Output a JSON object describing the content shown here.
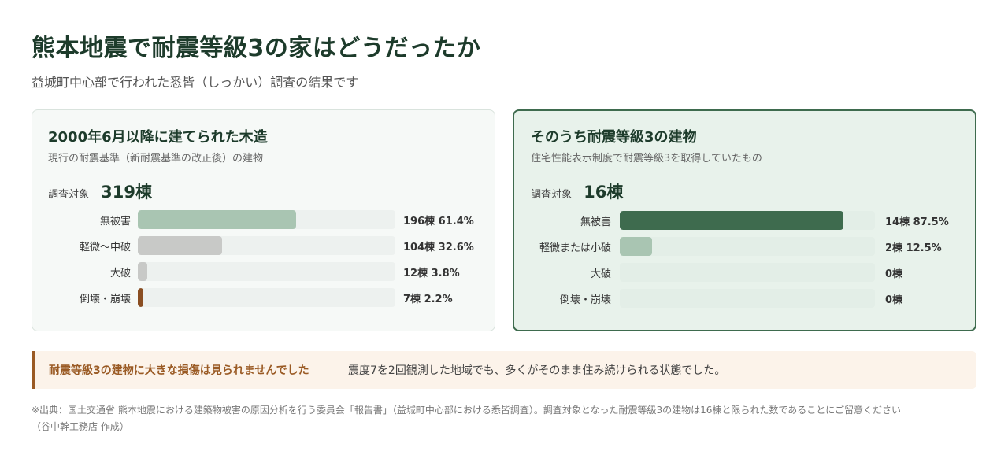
{
  "header": {
    "title": "熊本地震で耐震等級3の家はどうだったか",
    "subtitle": "益城町中心部で行われた悉皆（しっかい）調査の結果です"
  },
  "colors": {
    "none_left": "#a9c5b2",
    "minor_left": "#c8c9c7",
    "major_left": "#c8c9c7",
    "collapse": "#8a4e22",
    "none_right": "#3e6b4e",
    "minor_right": "#a9c5b2"
  },
  "chart_data": [
    {
      "type": "bar",
      "orientation": "horizontal",
      "title": "2000年6月以降に建てられた木造",
      "subtitle": "現行の耐震基準（新耐震基準の改正後）の建物",
      "total_label": "調査対象",
      "total": "319棟",
      "xlim": [
        0,
        100
      ],
      "categories": [
        "無被害",
        "軽微〜中破",
        "大破",
        "倒壊・崩壊"
      ],
      "values": [
        61.4,
        32.6,
        3.8,
        2.2
      ],
      "value_labels": [
        "196棟 61.4%",
        "104棟 32.6%",
        "12棟 3.8%",
        "7棟 2.2%"
      ],
      "bar_colors": [
        "#a9c5b2",
        "#c8c9c7",
        "#c8c9c7",
        "#8a4e22"
      ]
    },
    {
      "type": "bar",
      "orientation": "horizontal",
      "title": "そのうち耐震等級3の建物",
      "subtitle": "住宅性能表示制度で耐震等級3を取得していたもの",
      "total_label": "調査対象",
      "total": "16棟",
      "xlim": [
        0,
        100
      ],
      "categories": [
        "無被害",
        "軽微または小破",
        "大破",
        "倒壊・崩壊"
      ],
      "values": [
        87.5,
        12.5,
        0,
        0
      ],
      "value_labels": [
        "14棟 87.5%",
        "2棟 12.5%",
        "0棟",
        "0棟"
      ],
      "bar_colors": [
        "#3e6b4e",
        "#a9c5b2",
        "#3e6b4e",
        "#3e6b4e"
      ]
    }
  ],
  "notice": {
    "strong": "耐震等級3の建物に大きな損傷は見られませんでした",
    "text": "震度7を2回観測した地域でも、多くがそのまま住み続けられる状態でした。"
  },
  "source": {
    "line1": "※出典：国土交通省 熊本地震における建築物被害の原因分析を行う委員会「報告書」（益城町中心部における悉皆調査）。調査対象となった耐震等級3の建物は16棟と限られた数であることにご留意ください",
    "line2": "（谷中幹工務店 作成）"
  }
}
